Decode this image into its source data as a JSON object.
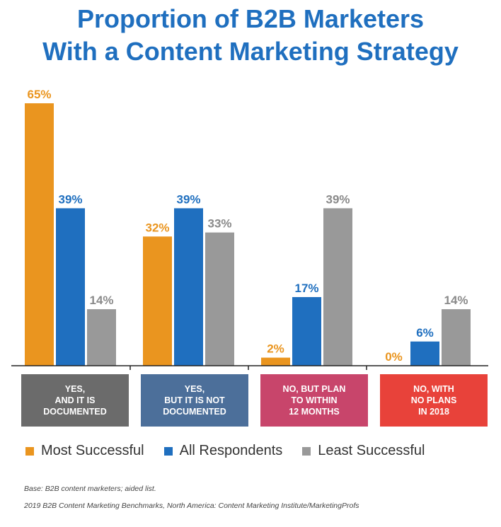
{
  "chart_data": {
    "type": "bar",
    "title": "Proportion of B2B Marketers\nWith a Content Marketing Strategy",
    "title_lines": [
      "Proportion of B2B Marketers",
      "With a Content Marketing Strategy"
    ],
    "categories": [
      "YES,\nAND IT IS\nDOCUMENTED",
      "YES,\nBUT IT IS NOT\nDOCUMENTED",
      "NO, BUT PLAN\nTO WITHIN\n12 MONTHS",
      "NO, WITH\nNO PLANS\nIN 2018"
    ],
    "category_colors": [
      "#6b6b6b",
      "#4c6f9a",
      "#c8456b",
      "#e8423a"
    ],
    "series": [
      {
        "name": "Most Successful",
        "color": "#ea951f",
        "values": [
          65,
          32,
          2,
          0
        ],
        "labels": [
          "65%",
          "32%",
          "2%",
          "0%"
        ]
      },
      {
        "name": "All Respondents",
        "color": "#1f6fbf",
        "values": [
          39,
          39,
          17,
          6
        ],
        "labels": [
          "39%",
          "39%",
          "17%",
          "6%"
        ]
      },
      {
        "name": "Least Successful",
        "color": "#999999",
        "values": [
          14,
          33,
          39,
          14
        ],
        "labels": [
          "14%",
          "33%",
          "39%",
          "14%"
        ]
      }
    ],
    "ylim": [
      0,
      65
    ],
    "grid": false,
    "legend_position": "bottom"
  },
  "notes": {
    "base": "Base: B2B content marketers; aided list.",
    "source": "2019 B2B Content Marketing Benchmarks, North America: Content Marketing Institute/MarketingProfs"
  }
}
